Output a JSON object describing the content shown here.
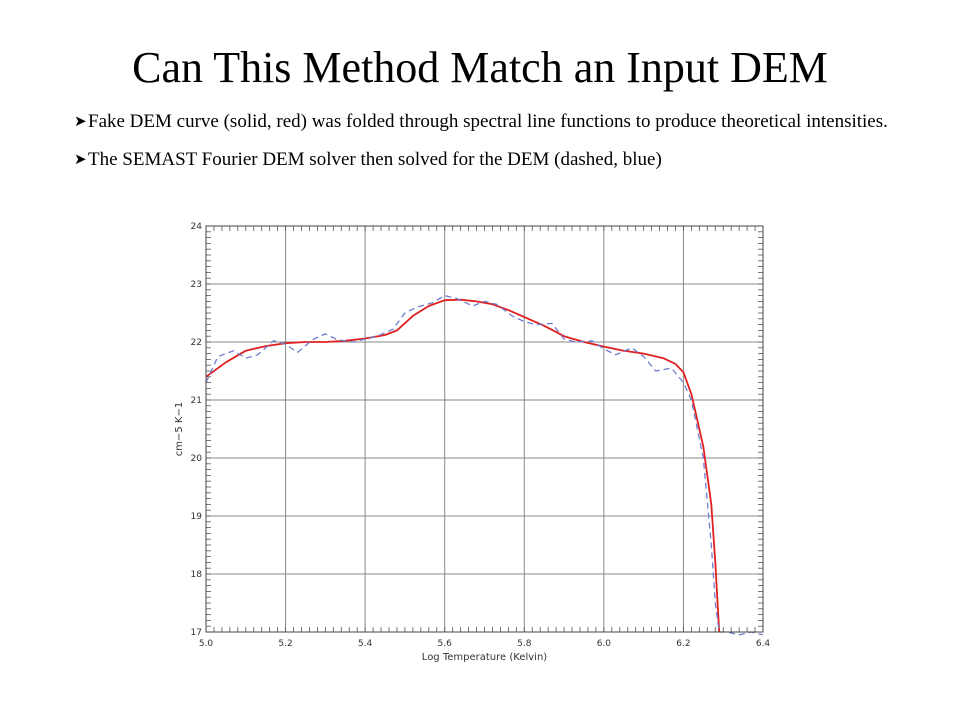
{
  "slide": {
    "title": "Can This Method Match an Input DEM",
    "bullets": [
      {
        "marker": "➤",
        "text": "Fake DEM curve (solid, red) was folded through spectral line functions to produce theoretical intensities."
      },
      {
        "marker": "➤",
        "text": "The SEMAST Fourier DEM solver then solved for the DEM (dashed, blue)"
      }
    ]
  },
  "chart_data": {
    "type": "line",
    "title": "",
    "xlabel": "Log Temperature (Kelvin)",
    "ylabel": "cm−5 K−1",
    "xlim": [
      5.0,
      6.4
    ],
    "ylim": [
      17,
      24
    ],
    "xticks": [
      "5.0",
      "5.2",
      "5.4",
      "5.6",
      "5.8",
      "6.0",
      "6.2",
      "6.4"
    ],
    "yticks": [
      "17",
      "18",
      "19",
      "20",
      "21",
      "22",
      "23",
      "24"
    ],
    "grid": true,
    "series": [
      {
        "style": "solid",
        "color": "#e02020",
        "x": [
          5.0,
          5.05,
          5.1,
          5.15,
          5.2,
          5.25,
          5.3,
          5.35,
          5.4,
          5.45,
          5.48,
          5.52,
          5.56,
          5.6,
          5.64,
          5.68,
          5.72,
          5.76,
          5.8,
          5.85,
          5.9,
          5.95,
          6.0,
          6.05,
          6.1,
          6.15,
          6.18,
          6.2,
          6.22,
          6.25,
          6.27,
          6.28,
          6.29
        ],
        "y": [
          21.4,
          21.65,
          21.85,
          21.93,
          21.98,
          22.0,
          22.0,
          22.02,
          22.06,
          22.12,
          22.2,
          22.45,
          22.62,
          22.72,
          22.73,
          22.7,
          22.65,
          22.55,
          22.43,
          22.28,
          22.1,
          22.0,
          21.92,
          21.85,
          21.8,
          21.72,
          21.62,
          21.48,
          21.1,
          20.2,
          19.2,
          18.2,
          17.0
        ]
      },
      {
        "style": "dashed",
        "color": "#6f7ed0",
        "x": [
          5.0,
          5.03,
          5.07,
          5.1,
          5.13,
          5.17,
          5.2,
          5.23,
          5.27,
          5.3,
          5.33,
          5.37,
          5.4,
          5.43,
          5.47,
          5.5,
          5.53,
          5.57,
          5.6,
          5.63,
          5.67,
          5.7,
          5.73,
          5.77,
          5.8,
          5.83,
          5.87,
          5.9,
          5.93,
          5.97,
          6.0,
          6.03,
          6.07,
          6.1,
          6.13,
          6.17,
          6.2,
          6.22,
          6.25,
          6.27,
          6.28,
          6.29,
          6.31,
          6.34,
          6.37,
          6.4
        ],
        "y": [
          21.3,
          21.75,
          21.85,
          21.72,
          21.78,
          22.02,
          21.96,
          21.82,
          22.05,
          22.14,
          22.04,
          22.0,
          22.05,
          22.1,
          22.22,
          22.5,
          22.6,
          22.68,
          22.8,
          22.75,
          22.62,
          22.7,
          22.65,
          22.45,
          22.35,
          22.3,
          22.32,
          22.05,
          22.0,
          22.02,
          21.88,
          21.78,
          21.9,
          21.75,
          21.5,
          21.55,
          21.3,
          21.0,
          20.0,
          18.5,
          17.5,
          17.0,
          17.0,
          16.95,
          17.0,
          16.95
        ]
      }
    ]
  }
}
